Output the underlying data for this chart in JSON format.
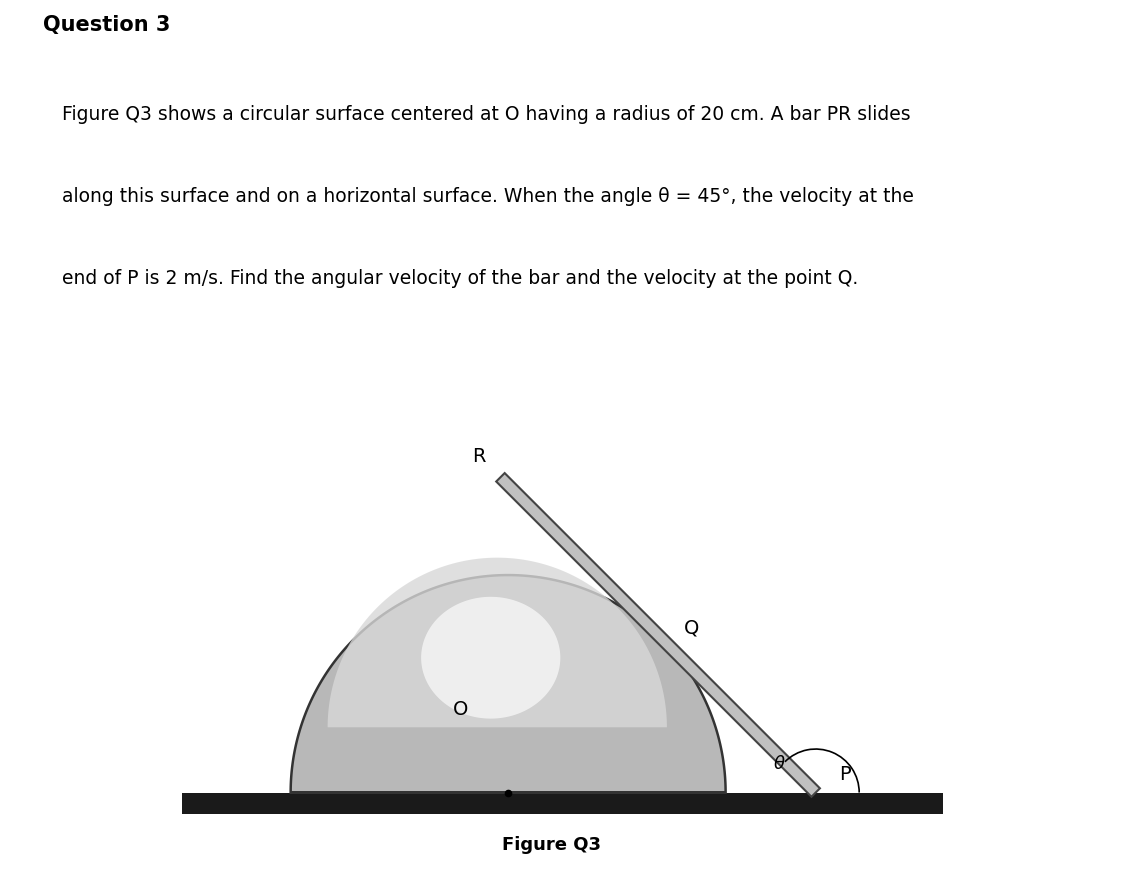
{
  "title": "Question 3",
  "description_lines": [
    "Figure Q3 shows a circular surface centered at O having a radius of 20 cm. A bar PR slides",
    "along this surface and on a horizontal surface. When the angle θ = 45°, the velocity at the",
    "end of P is 2 m/s. Find the angular velocity of the bar and the velocity at the point Q."
  ],
  "fig_caption": "Figure Q3",
  "theta_deg": 45,
  "circle_fill_outer": "#b8b8b8",
  "circle_fill_inner": "#d8d8d8",
  "circle_highlight": "#f0f0f0",
  "circle_edge": "#333333",
  "bar_fill": "#c0c0c0",
  "bar_edge": "#444444",
  "ground_color": "#1a1a1a",
  "bar_width": 0.055,
  "bar_extend_R": 1.05,
  "label_O": "O",
  "label_R": "R",
  "label_Q": "Q",
  "label_P": "P",
  "label_theta": "θ",
  "fontsize_title": 15,
  "fontsize_desc": 13.5,
  "fontsize_labels": 14,
  "fontsize_caption": 13,
  "background_color": "#ffffff"
}
